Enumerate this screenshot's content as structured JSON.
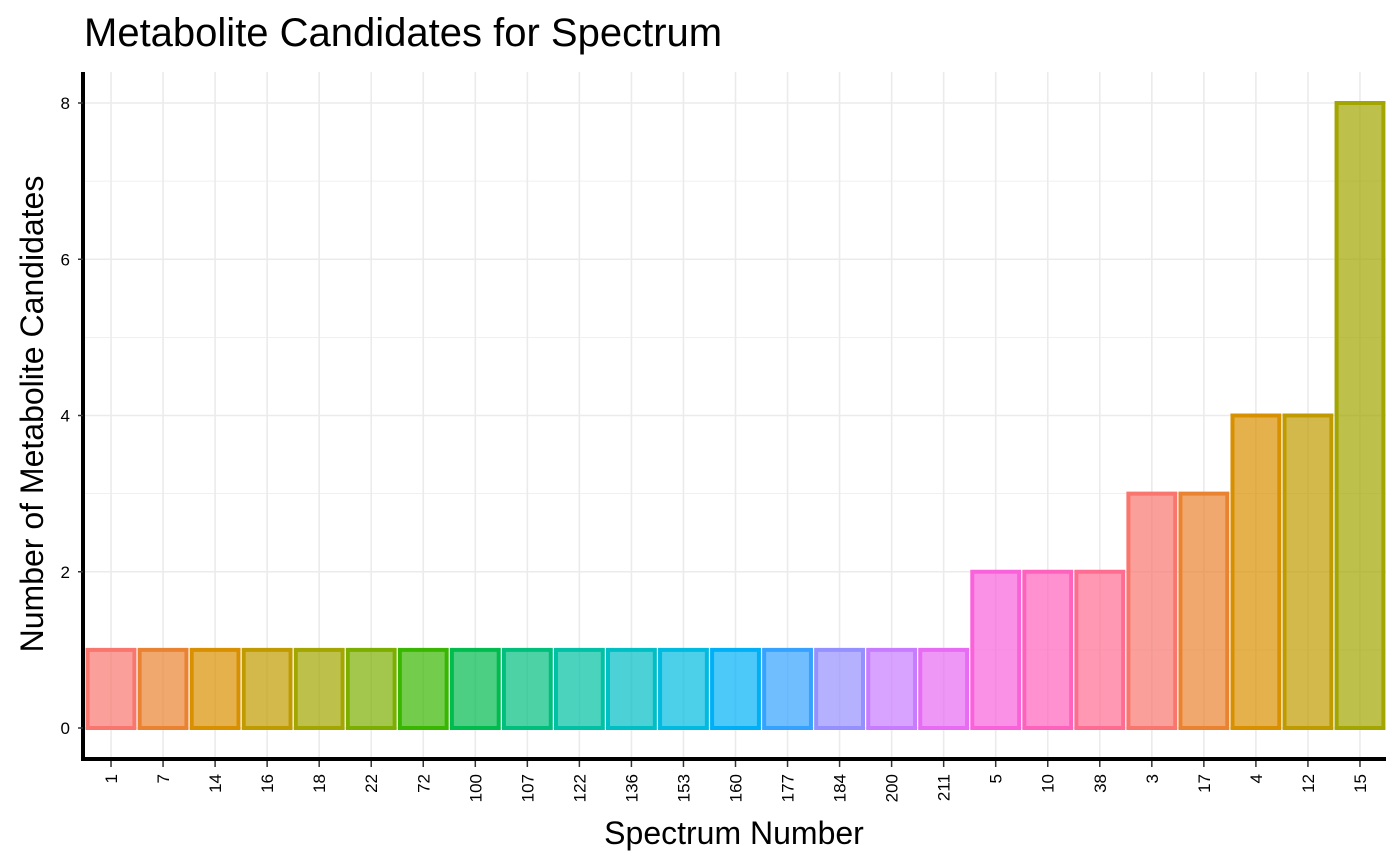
{
  "chart_data": {
    "type": "bar",
    "title": "Metabolite Candidates for Spectrum",
    "xlabel": "Spectrum Number",
    "ylabel": "Number of Metabolite Candidates",
    "categories": [
      "1",
      "7",
      "14",
      "16",
      "18",
      "22",
      "72",
      "100",
      "107",
      "122",
      "136",
      "153",
      "160",
      "177",
      "184",
      "200",
      "211",
      "5",
      "10",
      "38",
      "3",
      "17",
      "4",
      "12",
      "15"
    ],
    "values": [
      1,
      1,
      1,
      1,
      1,
      1,
      1,
      1,
      1,
      1,
      1,
      1,
      1,
      1,
      1,
      1,
      1,
      2,
      2,
      2,
      3,
      3,
      4,
      4,
      8
    ],
    "colors": [
      "#F8766D",
      "#EA8331",
      "#D89000",
      "#C09B00",
      "#A3A500",
      "#7CAE00",
      "#39B600",
      "#00BB4E",
      "#00BF7D",
      "#00C1A3",
      "#00BFC4",
      "#00BAE0",
      "#00B0F6",
      "#35A2FF",
      "#9590FF",
      "#C77CFF",
      "#E76BF3",
      "#FA62DB",
      "#FF62BC",
      "#FF6C91",
      "#F8766D",
      "#EA8331",
      "#D89000",
      "#C09B00",
      "#A3A500"
    ],
    "ylim": [
      -0.3,
      8.4
    ],
    "yticks": [
      0,
      2,
      4,
      6,
      8
    ],
    "grid": true,
    "legend": "none"
  }
}
